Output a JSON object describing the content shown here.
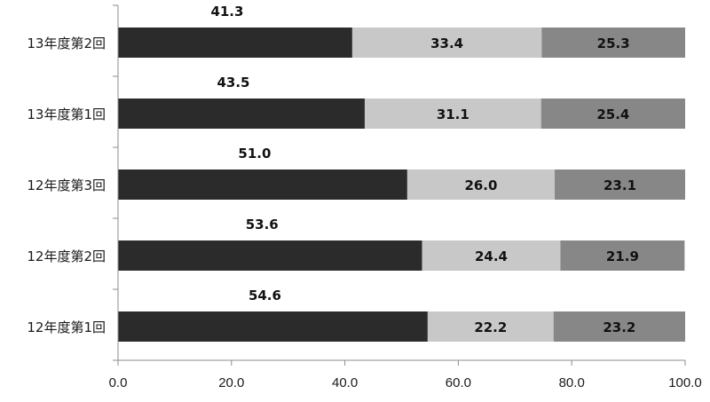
{
  "chart_data": {
    "type": "bar",
    "orientation": "horizontal",
    "stacked": true,
    "categories": [
      "13年度第2回",
      "13年度第1回",
      "12年度第3回",
      "12年度第2回",
      "12年度第1回"
    ],
    "series": [
      {
        "values": [
          41.3,
          43.5,
          51.0,
          53.6,
          54.6
        ],
        "value_labels": [
          "41.3",
          "43.5",
          "51.0",
          "53.6",
          "54.6"
        ],
        "color": "#2b2b2b"
      },
      {
        "values": [
          33.4,
          31.1,
          26.0,
          24.4,
          22.2
        ],
        "value_labels": [
          "33.4",
          "31.1",
          "26.0",
          "24.4",
          "22.2"
        ],
        "color": "#c8c8c8"
      },
      {
        "values": [
          25.3,
          25.4,
          23.1,
          21.9,
          23.2
        ],
        "value_labels": [
          "25.3",
          "25.4",
          "23.1",
          "21.9",
          "23.2"
        ],
        "color": "#878787"
      }
    ],
    "xlim": [
      0,
      100
    ],
    "x_ticks": [
      "0.0",
      "20.0",
      "40.0",
      "60.0",
      "80.0",
      "100.0"
    ],
    "grid": false,
    "legend": "none"
  }
}
